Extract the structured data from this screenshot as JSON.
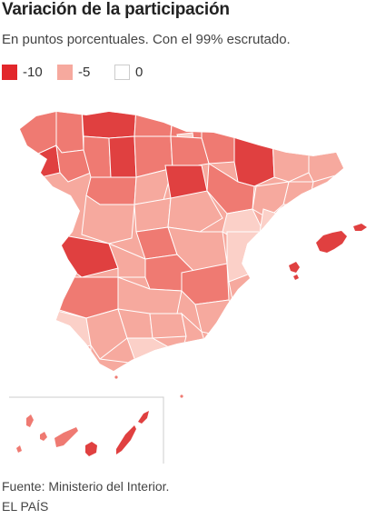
{
  "header": {
    "title": "Variación de la participación",
    "subtitle": "En puntos porcentuales. Con el 99% escrutado."
  },
  "legend": [
    {
      "label": "-10",
      "color": "#e2272b",
      "value": -10
    },
    {
      "label": "-5",
      "color": "#f6a99e",
      "value": -5
    },
    {
      "label": "0",
      "color": "#ffffff",
      "value": 0
    }
  ],
  "map": {
    "subject": "Spain provinces",
    "palette": {
      "strong": "#e04040",
      "medium": "#ef7a72",
      "light": "#f6a99e",
      "pale": "#fbd0c8",
      "border": "#ffffff"
    }
  },
  "footer": {
    "source": "Fuente: Ministerio del Interior.",
    "brand": "EL PAÍS"
  }
}
